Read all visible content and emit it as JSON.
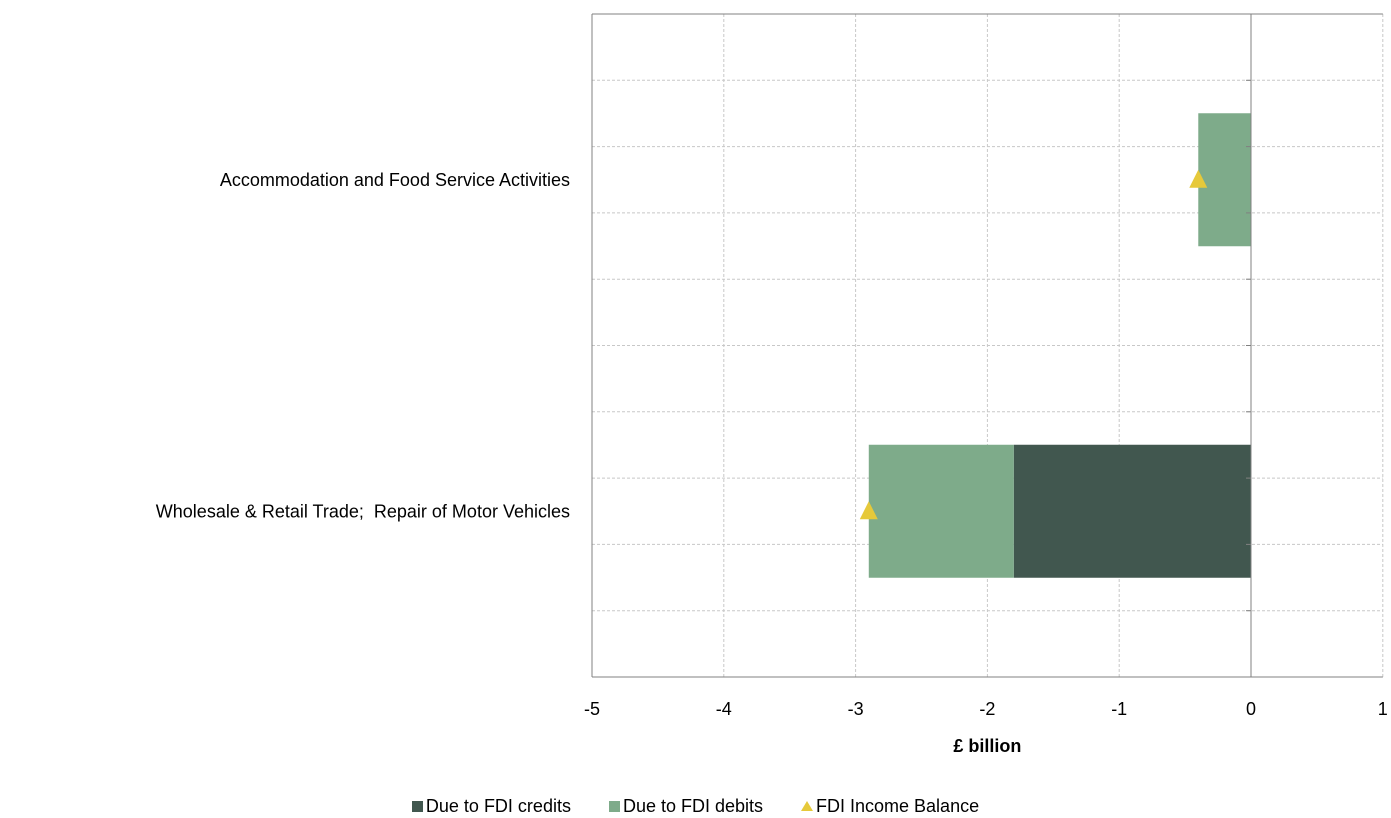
{
  "chart_data": {
    "type": "bar",
    "orientation": "horizontal",
    "stacked": true,
    "categories": [
      "Accommodation and Food Service Activities",
      "Wholesale & Retail Trade;  Repair of Motor Vehicles"
    ],
    "series": [
      {
        "name": "Due to FDI credits",
        "color": "#41574f",
        "values": [
          0,
          -1.8
        ]
      },
      {
        "name": "Due to FDI debits",
        "color": "#7eab8a",
        "values": [
          -0.4,
          -1.1
        ]
      }
    ],
    "markers": {
      "name": "FDI Income Balance",
      "color": "#e6c93a",
      "shape": "triangle",
      "values": [
        -0.4,
        -2.9
      ]
    },
    "xlabel": "£ billion",
    "xlim": [
      -5,
      1
    ],
    "xticks": [
      "-5",
      "-4",
      "-3",
      "-2",
      "-1",
      "0",
      "1"
    ],
    "grid": true,
    "legend_position": "bottom"
  }
}
